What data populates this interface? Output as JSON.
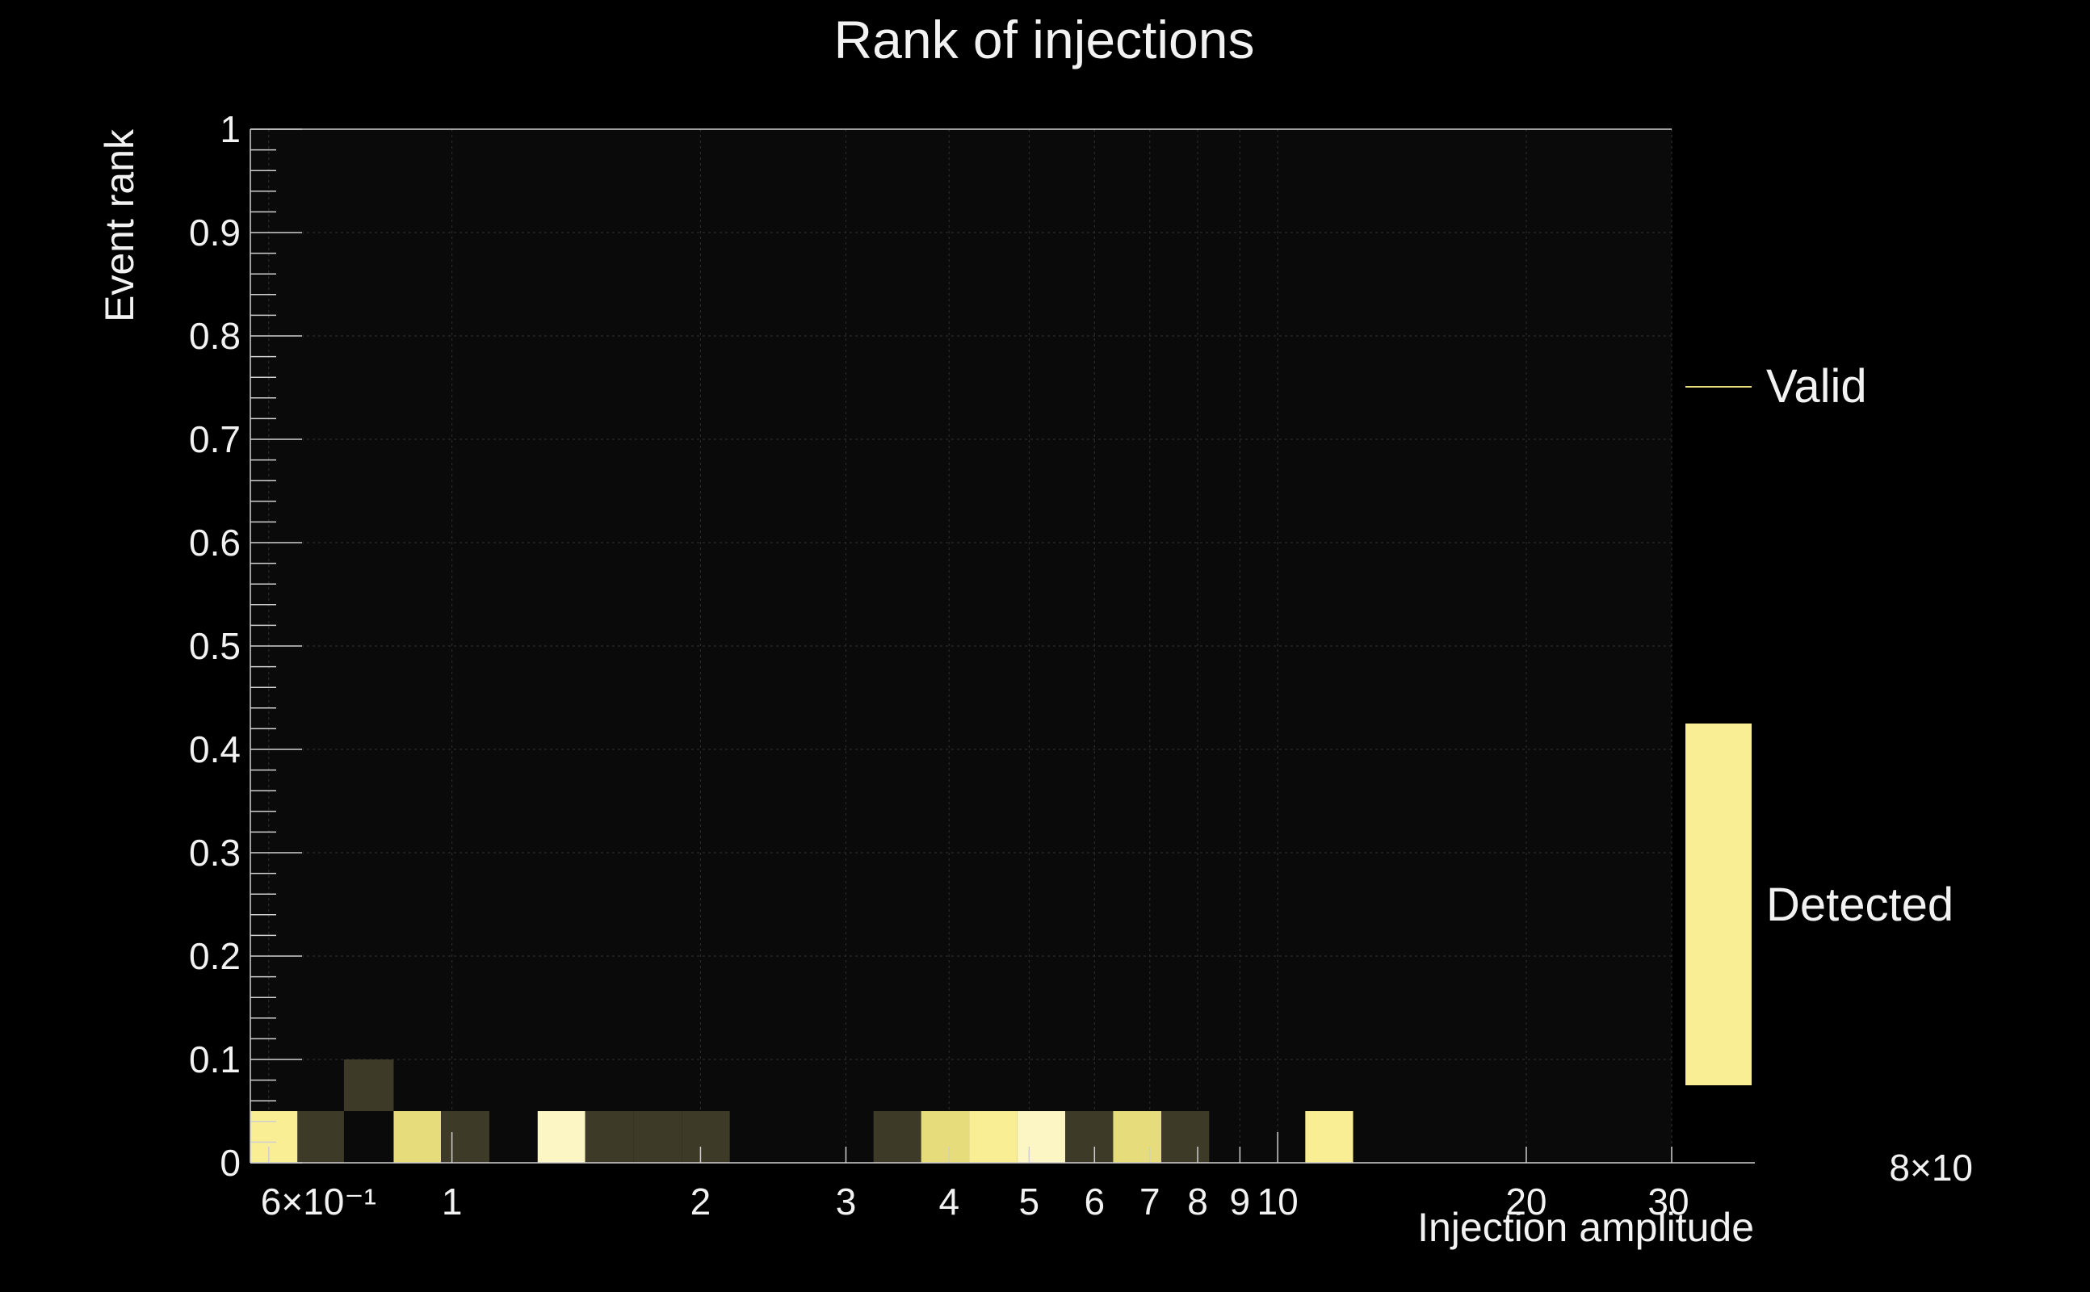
{
  "chart_data": {
    "type": "heatmap",
    "title": "Rank of injections",
    "xlabel": "Injection amplitude",
    "ylabel": "Event rank",
    "x_scale": "log",
    "xlim": [
      0.57,
      30
    ],
    "ylim": [
      0,
      1
    ],
    "x_ticks": [
      {
        "value": 0.6,
        "label": "6×10⁻¹"
      },
      {
        "value": 1,
        "label": "1"
      },
      {
        "value": 2,
        "label": "2"
      },
      {
        "value": 3,
        "label": "3"
      },
      {
        "value": 4,
        "label": "4"
      },
      {
        "value": 5,
        "label": "5"
      },
      {
        "value": 6,
        "label": "6"
      },
      {
        "value": 7,
        "label": "7"
      },
      {
        "value": 8,
        "label": "8"
      },
      {
        "value": 9,
        "label": "9"
      },
      {
        "value": 10,
        "label": "10"
      },
      {
        "value": 20,
        "label": "20"
      },
      {
        "value": 30,
        "label": "30"
      }
    ],
    "y_ticks": [
      {
        "value": 0,
        "label": "0"
      },
      {
        "value": 0.1,
        "label": "0.1"
      },
      {
        "value": 0.2,
        "label": "0.2"
      },
      {
        "value": 0.3,
        "label": "0.3"
      },
      {
        "value": 0.4,
        "label": "0.4"
      },
      {
        "value": 0.5,
        "label": "0.5"
      },
      {
        "value": 0.6,
        "label": "0.6"
      },
      {
        "value": 0.7,
        "label": "0.7"
      },
      {
        "value": 0.8,
        "label": "0.8"
      },
      {
        "value": 0.9,
        "label": "0.9"
      },
      {
        "value": 1,
        "label": "1"
      }
    ],
    "grid": true,
    "cells": [
      {
        "x0": 0.57,
        "x1": 0.65,
        "y0": 0,
        "y1": 0.05,
        "level": "bright"
      },
      {
        "x0": 0.65,
        "x1": 0.74,
        "y0": 0,
        "y1": 0.05,
        "level": "dim"
      },
      {
        "x0": 0.74,
        "x1": 0.85,
        "y0": 0.05,
        "y1": 0.1,
        "level": "dim"
      },
      {
        "x0": 0.85,
        "x1": 0.97,
        "y0": 0,
        "y1": 0.05,
        "level": "medium"
      },
      {
        "x0": 0.97,
        "x1": 1.11,
        "y0": 0,
        "y1": 0.05,
        "level": "dim"
      },
      {
        "x0": 1.27,
        "x1": 1.45,
        "y0": 0,
        "y1": 0.05,
        "level": "brightest"
      },
      {
        "x0": 1.45,
        "x1": 1.66,
        "y0": 0,
        "y1": 0.05,
        "level": "dim"
      },
      {
        "x0": 1.66,
        "x1": 1.9,
        "y0": 0,
        "y1": 0.05,
        "level": "dim"
      },
      {
        "x0": 1.9,
        "x1": 2.17,
        "y0": 0,
        "y1": 0.05,
        "level": "dim"
      },
      {
        "x0": 3.24,
        "x1": 3.7,
        "y0": 0,
        "y1": 0.05,
        "level": "dim"
      },
      {
        "x0": 3.7,
        "x1": 4.23,
        "y0": 0,
        "y1": 0.05,
        "level": "medium"
      },
      {
        "x0": 4.23,
        "x1": 4.84,
        "y0": 0,
        "y1": 0.05,
        "level": "bright"
      },
      {
        "x0": 4.84,
        "x1": 5.53,
        "y0": 0,
        "y1": 0.05,
        "level": "brightest"
      },
      {
        "x0": 5.53,
        "x1": 6.32,
        "y0": 0,
        "y1": 0.05,
        "level": "dim"
      },
      {
        "x0": 6.32,
        "x1": 7.23,
        "y0": 0,
        "y1": 0.05,
        "level": "medium"
      },
      {
        "x0": 7.23,
        "x1": 8.26,
        "y0": 0,
        "y1": 0.05,
        "level": "dim"
      },
      {
        "x0": 10.8,
        "x1": 12.34,
        "y0": 0,
        "y1": 0.05,
        "level": "bright"
      }
    ],
    "levels": {
      "dim": "#3e3a28",
      "medium": "#e6dc7b",
      "bright": "#faee94",
      "brightest": "#fcf5c4"
    },
    "palette_bar": {
      "color": "#faee94",
      "range": [
        0.075,
        0.425
      ]
    },
    "legend": [
      {
        "label": "Valid",
        "color": "#e6dc7b",
        "symbol": "line"
      },
      {
        "label": "Detected",
        "symbol": "none"
      }
    ],
    "legend_position": "right",
    "overflow_label": "8×10"
  }
}
